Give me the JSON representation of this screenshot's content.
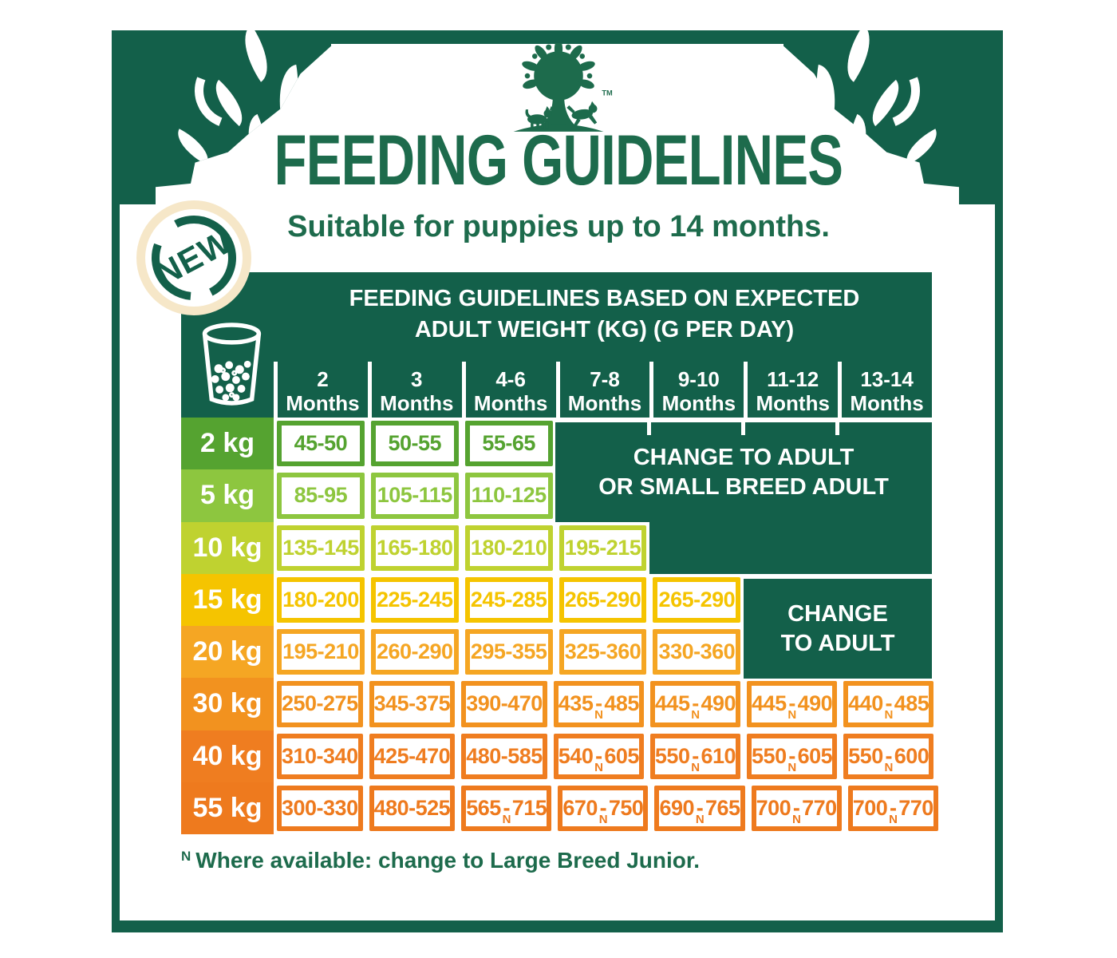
{
  "colors": {
    "brand_green": "#13604A",
    "text_green": "#1D6B4C",
    "badge_ring_cream": "#F6E7C8",
    "white": "#FFFFFF"
  },
  "header": {
    "logo_icon": "tree-with-pawprint-cat-and-dog-icon",
    "trademark": "TM",
    "title": "FEEDING GUIDELINES",
    "subtitle": "Suitable for puppies up to 14 months."
  },
  "badge": {
    "text": "NEW"
  },
  "table_ui": {
    "title_line1": "FEEDING GUIDELINES BASED ON EXPECTED",
    "title_line2": "ADULT WEIGHT (KG) (G PER DAY)",
    "cup_icon": "measuring-cup-with-kibble-icon",
    "column_periods": [
      "2",
      "3",
      "4-6",
      "7-8",
      "9-10",
      "11-12",
      "13-14"
    ],
    "column_unit": "Months",
    "row_colors": [
      "#55A330",
      "#8DC63F",
      "#BFD230",
      "#F5C400",
      "#F5A623",
      "#F2921F",
      "#EF7D20",
      "#EE7A1E"
    ],
    "merged_adult_small": {
      "line1": "CHANGE TO ADULT",
      "line2": "OR SMALL BREED ADULT"
    },
    "merged_adult": {
      "line1": "CHANGE",
      "line2": "TO ADULT"
    }
  },
  "chart_data": {
    "type": "table",
    "title": "FEEDING GUIDELINES BASED ON EXPECTED ADULT WEIGHT (KG) (G PER DAY)",
    "columns": [
      "2 Months",
      "3 Months",
      "4-6 Months",
      "7-8 Months",
      "9-10 Months",
      "11-12 Months",
      "13-14 Months"
    ],
    "rows": [
      "2 kg",
      "5 kg",
      "10 kg",
      "15 kg",
      "20 kg",
      "30 kg",
      "40 kg",
      "55 kg"
    ],
    "values": [
      [
        "45-50",
        "50-55",
        "55-65",
        null,
        null,
        null,
        null
      ],
      [
        "85-95",
        "105-115",
        "110-125",
        null,
        null,
        null,
        null
      ],
      [
        "135-145",
        "165-180",
        "180-210",
        "195-215",
        null,
        null,
        null
      ],
      [
        "180-200",
        "225-245",
        "245-285",
        "265-290",
        "265-290",
        null,
        null
      ],
      [
        "195-210",
        "260-290",
        "295-355",
        "325-360",
        "330-360",
        null,
        null
      ],
      [
        "250-275",
        "345-375",
        "390-470",
        "435-485",
        "445-490",
        "445-490",
        "440-485"
      ],
      [
        "310-340",
        "425-470",
        "480-585",
        "540-605",
        "550-610",
        "550-605",
        "550-600"
      ],
      [
        "300-330",
        "480-525",
        "565-715",
        "670-750",
        "690-765",
        "700-770",
        "700-770"
      ]
    ],
    "footnote_marker_cells": [
      [
        false,
        false,
        false,
        false,
        false,
        false,
        false
      ],
      [
        false,
        false,
        false,
        false,
        false,
        false,
        false
      ],
      [
        false,
        false,
        false,
        false,
        false,
        false,
        false
      ],
      [
        false,
        false,
        false,
        false,
        false,
        false,
        false
      ],
      [
        false,
        false,
        false,
        false,
        false,
        false,
        false
      ],
      [
        false,
        false,
        false,
        true,
        true,
        true,
        true
      ],
      [
        false,
        false,
        false,
        true,
        true,
        true,
        true
      ],
      [
        false,
        false,
        true,
        true,
        true,
        true,
        true
      ]
    ],
    "merged_regions": [
      {
        "label": "CHANGE TO ADULT OR SMALL BREED ADULT",
        "rows": [
          "2 kg",
          "5 kg",
          "10 kg"
        ],
        "columns": "month columns without values"
      },
      {
        "label": "CHANGE TO ADULT",
        "rows": [
          "15 kg",
          "20 kg"
        ],
        "columns": [
          "11-12 Months",
          "13-14 Months"
        ]
      }
    ],
    "legend_position": "none",
    "grid": true
  },
  "footnote": {
    "marker": "N",
    "text": "Where available: change to Large Breed Junior."
  }
}
